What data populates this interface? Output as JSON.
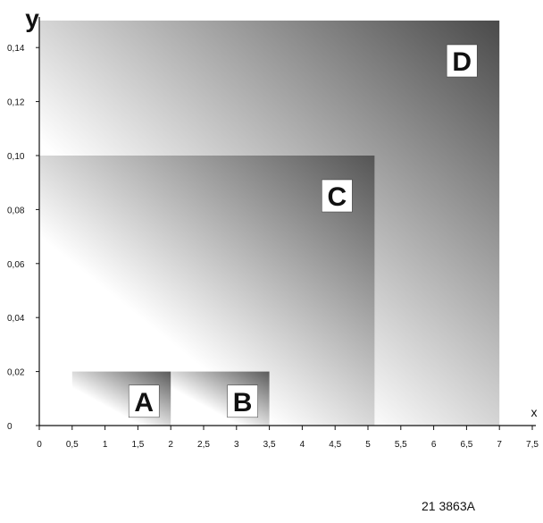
{
  "chart_data": {
    "type": "area",
    "xlabel": "x",
    "ylabel": "y",
    "xlim": [
      0,
      7.5
    ],
    "ylim": [
      0,
      0.15
    ],
    "x_ticks": [
      0,
      0.5,
      1,
      1.5,
      2,
      2.5,
      3,
      3.5,
      4,
      4.5,
      5,
      5.5,
      6,
      6.5,
      7,
      7.5
    ],
    "x_tick_labels": [
      "0",
      "0,5",
      "1",
      "1,5",
      "2",
      "2,5",
      "3",
      "3,5",
      "4",
      "4,5",
      "5",
      "5,5",
      "6",
      "6,5",
      "7",
      "7,5"
    ],
    "y_ticks": [
      0,
      0.02,
      0.04,
      0.06,
      0.08,
      0.1,
      0.12,
      0.14
    ],
    "y_tick_labels": [
      "0",
      "0,02",
      "0,04",
      "0,06",
      "0,08",
      "0,10",
      "0,12",
      "0,14"
    ],
    "regions": [
      {
        "name": "D",
        "x_start": 0,
        "x_end": 7,
        "y_start": 0,
        "y_end": 0.15,
        "color_dark": "#4a4a4a"
      },
      {
        "name": "C",
        "x_start": 0,
        "x_end": 5.1,
        "y_start": 0,
        "y_end": 0.1,
        "color_dark": "#555555"
      },
      {
        "name": "B",
        "x_start": 2,
        "x_end": 3.5,
        "y_start": 0,
        "y_end": 0.02,
        "color_dark": "#5a5a5a"
      },
      {
        "name": "A",
        "x_start": 0.5,
        "x_end": 2,
        "y_start": 0,
        "y_end": 0.02,
        "color_dark": "#5a5a5a"
      }
    ],
    "grid": false
  },
  "figure_code": "21 3863A"
}
